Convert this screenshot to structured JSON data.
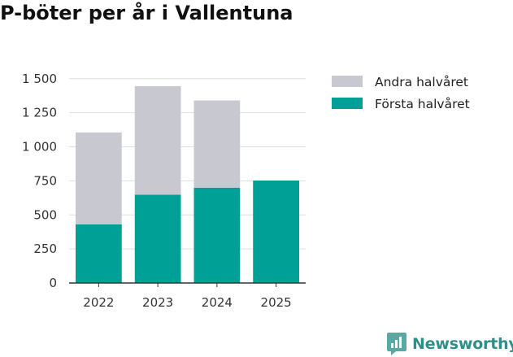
{
  "chart_data": {
    "type": "bar",
    "stacked": true,
    "title": "P-böter per år i Vallentuna",
    "categories": [
      "2022",
      "2023",
      "2024",
      "2025"
    ],
    "series": [
      {
        "name": "Första halvåret",
        "color": "#00a096",
        "values": [
          430,
          648,
          700,
          752
        ]
      },
      {
        "name": "Andra halvåret",
        "color": "#c8c8d1",
        "values": [
          675,
          797,
          640,
          null
        ]
      }
    ],
    "ylim": [
      0,
      1600
    ],
    "yticks": [
      0,
      250,
      500,
      750,
      1000,
      1250,
      1500
    ],
    "ytick_labels": [
      "0",
      "250",
      "500",
      "750",
      "1 000",
      "1 250",
      "1 500"
    ],
    "grid": true,
    "legend_position": "right",
    "xlabel": "",
    "ylabel": ""
  },
  "brand": {
    "name": "Newsworthy",
    "icon": "newsworthy-logo-icon",
    "color": "#2e8f8a"
  }
}
